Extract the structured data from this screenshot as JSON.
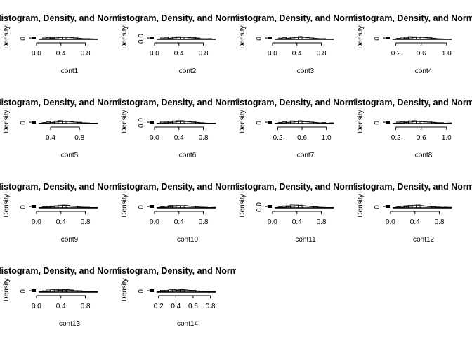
{
  "figure": {
    "background": "#ffffff",
    "ink": "#000000"
  },
  "chart_data": [
    {
      "type": "histogram",
      "title": "Histogram, Density, and Normal",
      "xlabel": "cont1",
      "ylabel": "Density",
      "xticks": [
        "0.0",
        "0.4",
        "0.8"
      ],
      "xtick_values": [
        0.0,
        0.4,
        0.8
      ],
      "yticks": [
        "0"
      ],
      "xlim": [
        -0.16,
        1.0
      ],
      "ylim": [
        0,
        9
      ]
    },
    {
      "type": "histogram",
      "title": "Histogram, Density, and Normal",
      "xlabel": "cont2",
      "ylabel": "Density",
      "xticks": [
        "0.0",
        "0.4",
        "0.8"
      ],
      "xtick_values": [
        0.0,
        0.4,
        0.8
      ],
      "yticks": [
        "0.0"
      ],
      "xlim": [
        -0.16,
        1.0
      ],
      "ylim": [
        0,
        9
      ]
    },
    {
      "type": "histogram",
      "title": "Histogram, Density, and Normal",
      "xlabel": "cont3",
      "ylabel": "Density",
      "xticks": [
        "0.0",
        "0.4",
        "0.8"
      ],
      "xtick_values": [
        0.0,
        0.4,
        0.8
      ],
      "yticks": [
        "0"
      ],
      "xlim": [
        -0.16,
        1.0
      ],
      "ylim": [
        0,
        9
      ]
    },
    {
      "type": "histogram",
      "title": "Histogram, Density, and Normal",
      "xlabel": "cont4",
      "ylabel": "Density",
      "xticks": [
        "0.2",
        "0.6",
        "1.0"
      ],
      "xtick_values": [
        0.2,
        0.6,
        1.0
      ],
      "yticks": [
        "0"
      ],
      "xlim": [
        -0.04,
        1.08
      ],
      "ylim": [
        0,
        9
      ]
    },
    {
      "type": "histogram",
      "title": "Histogram, Density, and Normal",
      "xlabel": "cont5",
      "ylabel": "Density",
      "xticks": [
        "0.4",
        "0.8"
      ],
      "xtick_values": [
        0.4,
        0.8
      ],
      "yticks": [
        "0"
      ],
      "xlim": [
        0.07,
        1.05
      ],
      "ylim": [
        0,
        9
      ]
    },
    {
      "type": "histogram",
      "title": "Histogram, Density, and Normal",
      "xlabel": "cont6",
      "ylabel": "Density",
      "xticks": [
        "0.0",
        "0.4",
        "0.8"
      ],
      "xtick_values": [
        0.0,
        0.4,
        0.8
      ],
      "yticks": [
        "0.0"
      ],
      "xlim": [
        -0.16,
        1.0
      ],
      "ylim": [
        0,
        9
      ]
    },
    {
      "type": "histogram",
      "title": "Histogram, Density, and Normal",
      "xlabel": "cont7",
      "ylabel": "Density",
      "xticks": [
        "0.2",
        "0.6",
        "1.0"
      ],
      "xtick_values": [
        0.2,
        0.6,
        1.0
      ],
      "yticks": [
        "0"
      ],
      "xlim": [
        -0.05,
        1.12
      ],
      "ylim": [
        0,
        9
      ]
    },
    {
      "type": "histogram",
      "title": "Histogram, Density, and Normal",
      "xlabel": "cont8",
      "ylabel": "Density",
      "xticks": [
        "0.2",
        "0.6",
        "1.0"
      ],
      "xtick_values": [
        0.2,
        0.6,
        1.0
      ],
      "yticks": [
        "0"
      ],
      "xlim": [
        -0.04,
        1.08
      ],
      "ylim": [
        0,
        9
      ]
    },
    {
      "type": "histogram",
      "title": "Histogram, Density, and Normal",
      "xlabel": "cont9",
      "ylabel": "Density",
      "xticks": [
        "0.0",
        "0.4",
        "0.8"
      ],
      "xtick_values": [
        0.0,
        0.4,
        0.8
      ],
      "yticks": [
        "0"
      ],
      "xlim": [
        -0.16,
        1.0
      ],
      "ylim": [
        0,
        9
      ]
    },
    {
      "type": "histogram",
      "title": "Histogram, Density, and Normal",
      "xlabel": "cont10",
      "ylabel": "Density",
      "xticks": [
        "0.0",
        "0.4",
        "0.8"
      ],
      "xtick_values": [
        0.0,
        0.4,
        0.8
      ],
      "yticks": [
        "0"
      ],
      "xlim": [
        -0.16,
        1.0
      ],
      "ylim": [
        0,
        9
      ]
    },
    {
      "type": "histogram",
      "title": "Histogram, Density, and Normal",
      "xlabel": "cont11",
      "ylabel": "Density",
      "xticks": [
        "0.0",
        "0.4",
        "0.8"
      ],
      "xtick_values": [
        0.0,
        0.4,
        0.8
      ],
      "yticks": [
        "0.0"
      ],
      "xlim": [
        -0.16,
        1.0
      ],
      "ylim": [
        0,
        9
      ]
    },
    {
      "type": "histogram",
      "title": "Histogram, Density, and Normal",
      "xlabel": "cont12",
      "ylabel": "Density",
      "xticks": [
        "0.0",
        "0.4",
        "0.8"
      ],
      "xtick_values": [
        0.0,
        0.4,
        0.8
      ],
      "yticks": [
        "0"
      ],
      "xlim": [
        -0.16,
        1.0
      ],
      "ylim": [
        0,
        9
      ]
    },
    {
      "type": "histogram",
      "title": "Histogram, Density, and Normal",
      "xlabel": "cont13",
      "ylabel": "Density",
      "xticks": [
        "0.0",
        "0.4",
        "0.8"
      ],
      "xtick_values": [
        0.0,
        0.4,
        0.8
      ],
      "yticks": [
        "0"
      ],
      "xlim": [
        -0.16,
        1.0
      ],
      "ylim": [
        0,
        9
      ]
    },
    {
      "type": "histogram",
      "title": "Histogram, Density, and Normal",
      "xlabel": "cont14",
      "ylabel": "Density",
      "xticks": [
        "0.2",
        "0.4",
        "0.6",
        "0.8"
      ],
      "xtick_values": [
        0.2,
        0.4,
        0.6,
        0.8
      ],
      "yticks": [
        "0"
      ],
      "xlim": [
        0.04,
        0.86
      ],
      "ylim": [
        0,
        9
      ]
    }
  ]
}
